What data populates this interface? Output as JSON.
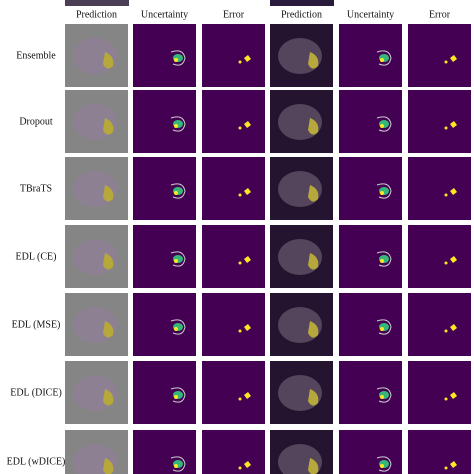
{
  "columns": [
    "Prediction",
    "Uncertainty",
    "Error",
    "Prediction",
    "Uncertainty",
    "Error"
  ],
  "rows": [
    "Ensemble",
    "Dropout",
    "TBraTS",
    "EDL (CE)",
    "EDL (MSE)",
    "EDL (DICE)",
    "EDL (wDICE)"
  ]
}
